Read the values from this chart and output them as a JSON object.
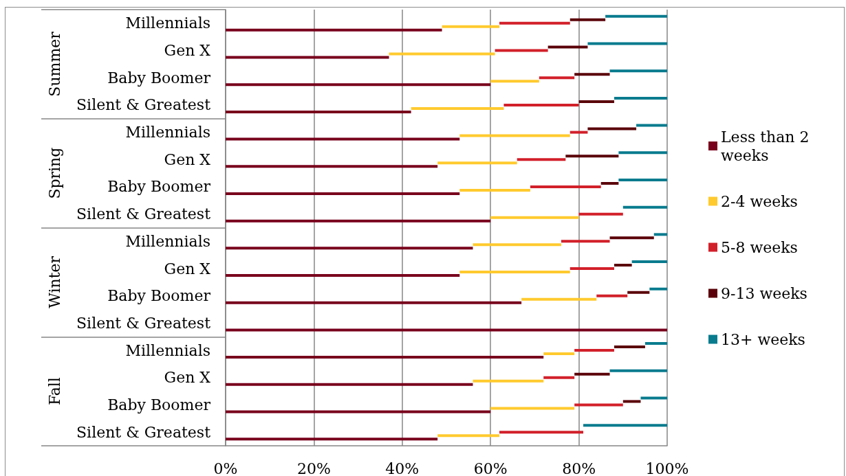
{
  "chart_data": {
    "type": "bar",
    "orientation": "horizontal",
    "stacked": true,
    "categories": [
      "Millennials",
      "Gen X",
      "Baby Boomer",
      "Silent & Greatest",
      "Millennials",
      "Gen X",
      "Baby Boomer",
      "Silent & Greatest",
      "Millennials",
      "Gen X",
      "Baby Boomer",
      "Silent & Greatest",
      "Millennials",
      "Gen X",
      "Baby Boomer",
      "Silent & Greatest"
    ],
    "annotations": [
      "Summer",
      "Spring",
      "Winter",
      "Fall"
    ],
    "series": [
      {
        "name": "Less than 2 weeks",
        "color": "#78001c",
        "values": [
          49,
          37,
          60,
          42,
          53,
          48,
          53,
          60,
          56,
          53,
          67,
          100,
          72,
          56,
          60,
          48
        ]
      },
      {
        "name": "2-4 weeks",
        "color": "#ffca2e",
        "values": [
          13,
          24,
          11,
          21,
          25,
          18,
          16,
          20,
          20,
          25,
          17,
          0,
          7,
          16,
          19,
          14
        ]
      },
      {
        "name": "5-8 weeks",
        "color": "#d2202a",
        "values": [
          16,
          12,
          8,
          17,
          4,
          11,
          16,
          10,
          11,
          10,
          7,
          0,
          9,
          7,
          11,
          19
        ]
      },
      {
        "name": "9-13 weeks",
        "color": "#5a0008",
        "values": [
          8,
          9,
          8,
          8,
          11,
          12,
          4,
          0,
          10,
          4,
          5,
          0,
          7,
          8,
          4,
          0
        ]
      },
      {
        "name": "13+ weeks",
        "color": "#087b8e",
        "values": [
          14,
          18,
          13,
          12,
          7,
          11,
          11,
          10,
          3,
          8,
          4,
          0,
          5,
          13,
          6,
          19
        ]
      }
    ],
    "xlim": [
      0,
      100
    ],
    "xticks": [
      {
        "value": 0,
        "label": "0%"
      },
      {
        "value": 20,
        "label": "20%"
      },
      {
        "value": 40,
        "label": "40%"
      },
      {
        "value": 60,
        "label": "60%"
      },
      {
        "value": 80,
        "label": "80%"
      },
      {
        "value": 100,
        "label": "100%"
      }
    ],
    "grid": "x",
    "legend": "right"
  }
}
